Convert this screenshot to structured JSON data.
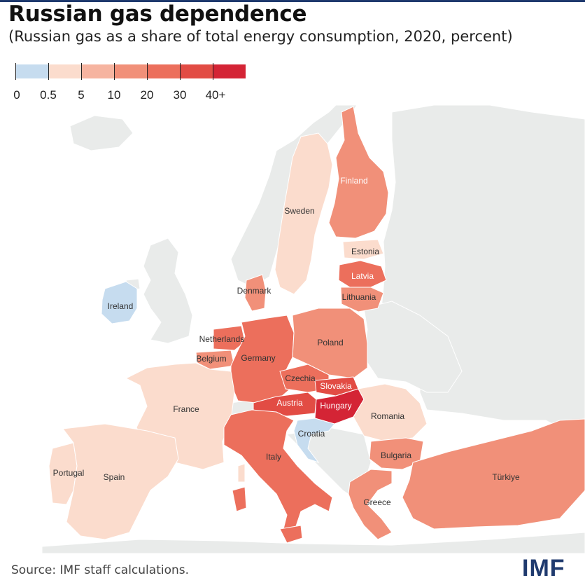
{
  "header": {
    "title": "Russian gas dependence",
    "subtitle": "(Russian gas as a share of total energy consumption, 2020, percent)"
  },
  "legend": {
    "labels": [
      "0",
      "0.5",
      "5",
      "10",
      "20",
      "30",
      "40+"
    ],
    "colors": [
      "#c6dcef",
      "#fbdccd",
      "#f6b4a0",
      "#f19079",
      "#ec6f5c",
      "#e24c44",
      "#d42435"
    ]
  },
  "colors": {
    "land_other": "#e9ebea",
    "sea": "#ffffff",
    "brand": "#1f3a6e"
  },
  "countries": [
    {
      "name": "Finland",
      "bin": 3
    },
    {
      "name": "Sweden",
      "bin": 1
    },
    {
      "name": "Estonia",
      "bin": 1
    },
    {
      "name": "Latvia",
      "bin": 4
    },
    {
      "name": "Lithuania",
      "bin": 3
    },
    {
      "name": "Denmark",
      "bin": 3
    },
    {
      "name": "Ireland",
      "bin": 0
    },
    {
      "name": "Netherlands",
      "bin": 4
    },
    {
      "name": "Belgium",
      "bin": 3
    },
    {
      "name": "Germany",
      "bin": 4
    },
    {
      "name": "Poland",
      "bin": 3
    },
    {
      "name": "Czechia",
      "bin": 4
    },
    {
      "name": "Slovakia",
      "bin": 5
    },
    {
      "name": "Austria",
      "bin": 5
    },
    {
      "name": "Hungary",
      "bin": 6
    },
    {
      "name": "France",
      "bin": 1
    },
    {
      "name": "Romania",
      "bin": 1
    },
    {
      "name": "Croatia",
      "bin": 0
    },
    {
      "name": "Italy",
      "bin": 4
    },
    {
      "name": "Bulgaria",
      "bin": 3
    },
    {
      "name": "Portugal",
      "bin": 1
    },
    {
      "name": "Spain",
      "bin": 1
    },
    {
      "name": "Greece",
      "bin": 3
    },
    {
      "name": "Türkiye",
      "bin": 3
    }
  ],
  "footer": {
    "source": "Source: IMF staff calculations.",
    "logo": "IMF"
  }
}
